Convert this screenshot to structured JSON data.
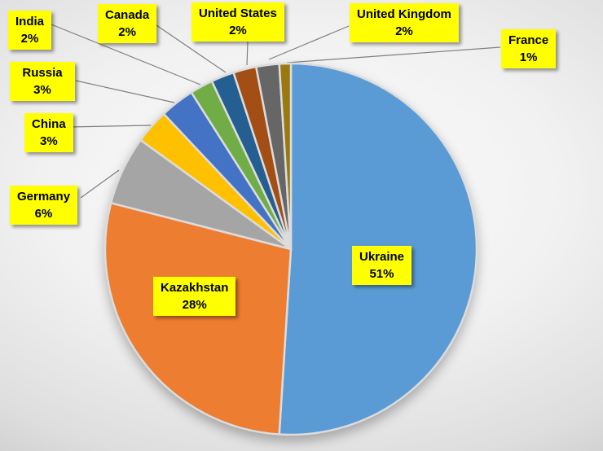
{
  "chart_data": {
    "type": "pie",
    "title": "",
    "legend_position": "none",
    "label_style": {
      "background": "#FFFF00",
      "text_color": "#000000"
    },
    "start_angle_deg": 0,
    "direction": "clockwise",
    "categories": [
      "Ukraine",
      "Kazakhstan",
      "Germany",
      "China",
      "Russia",
      "India",
      "Canada",
      "United States",
      "United Kingdom",
      "France"
    ],
    "values": [
      51,
      28,
      6,
      3,
      3,
      2,
      2,
      2,
      2,
      1
    ],
    "slices": [
      {
        "name": "Ukraine",
        "value": 51,
        "pct": "51%",
        "color": "#5B9BD5"
      },
      {
        "name": "Kazakhstan",
        "value": 28,
        "pct": "28%",
        "color": "#ED7D31"
      },
      {
        "name": "Germany",
        "value": 6,
        "pct": "6%",
        "color": "#A5A5A5"
      },
      {
        "name": "China",
        "value": 3,
        "pct": "3%",
        "color": "#FFC000"
      },
      {
        "name": "Russia",
        "value": 3,
        "pct": "3%",
        "color": "#4472C4"
      },
      {
        "name": "India",
        "value": 2,
        "pct": "2%",
        "color": "#70AD47"
      },
      {
        "name": "Canada",
        "value": 2,
        "pct": "2%",
        "color": "#255E91"
      },
      {
        "name": "United States",
        "value": 2,
        "pct": "2%",
        "color": "#A34E14"
      },
      {
        "name": "United Kingdom",
        "value": 2,
        "pct": "2%",
        "color": "#666666"
      },
      {
        "name": "France",
        "value": 1,
        "pct": "1%",
        "color": "#9A7A10"
      }
    ]
  }
}
